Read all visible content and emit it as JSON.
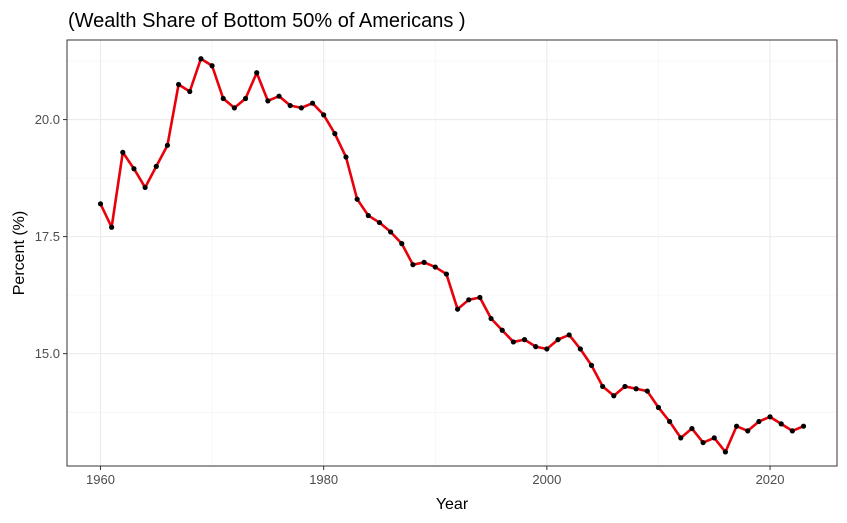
{
  "chart_data": {
    "type": "line",
    "title": "(Wealth Share of Bottom 50% of Americans )",
    "xlabel": "Year",
    "ylabel": "Percent (%)",
    "xlim": [
      1957,
      2026
    ],
    "ylim": [
      12.6,
      21.7
    ],
    "x_ticks": [
      1960,
      1980,
      2000,
      2020
    ],
    "y_ticks": [
      15.0,
      17.5,
      20.0
    ],
    "x_tick_labels": [
      "1960",
      "1980",
      "2000",
      "2020"
    ],
    "y_tick_labels": [
      "15.0",
      "17.5",
      "20.0"
    ],
    "grid": true,
    "line_color": "#e8000b",
    "point_color": "#000000",
    "x": [
      1960,
      1961,
      1962,
      1963,
      1964,
      1965,
      1966,
      1967,
      1968,
      1969,
      1970,
      1971,
      1972,
      1973,
      1974,
      1975,
      1976,
      1977,
      1978,
      1979,
      1980,
      1981,
      1982,
      1983,
      1984,
      1985,
      1986,
      1987,
      1988,
      1989,
      1990,
      1991,
      1992,
      1993,
      1994,
      1995,
      1996,
      1997,
      1998,
      1999,
      2000,
      2001,
      2002,
      2003,
      2004,
      2005,
      2006,
      2007,
      2008,
      2009,
      2010,
      2011,
      2012,
      2013,
      2014,
      2015,
      2016,
      2017,
      2018,
      2019,
      2020,
      2021,
      2022,
      2023
    ],
    "values": [
      18.2,
      17.7,
      19.3,
      18.95,
      18.55,
      19.0,
      19.45,
      20.75,
      20.6,
      21.3,
      21.15,
      20.45,
      20.25,
      20.45,
      21.0,
      20.4,
      20.5,
      20.3,
      20.25,
      20.35,
      20.1,
      19.7,
      19.2,
      18.3,
      17.95,
      17.8,
      17.6,
      17.35,
      16.9,
      16.95,
      16.85,
      16.7,
      15.95,
      16.15,
      16.2,
      15.75,
      15.5,
      15.25,
      15.3,
      15.15,
      15.1,
      15.3,
      15.4,
      15.1,
      14.75,
      14.3,
      14.1,
      14.3,
      14.25,
      14.2,
      13.85,
      13.55,
      13.2,
      13.4,
      13.1,
      13.2,
      12.9,
      13.45,
      13.35,
      13.55,
      13.65,
      13.5,
      13.35,
      13.45
    ]
  }
}
